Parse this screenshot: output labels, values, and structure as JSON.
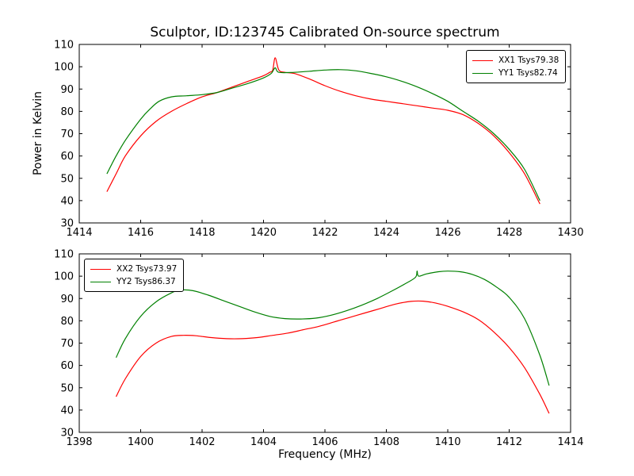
{
  "chart_data": [
    {
      "type": "line",
      "title": "Sculptor, ID:123745 Calibrated On-source spectrum",
      "xlabel": "",
      "ylabel": "Power in Kelvin",
      "xlim": [
        1414,
        1430
      ],
      "ylim": [
        30,
        110
      ],
      "xticks": [
        1414,
        1416,
        1418,
        1420,
        1422,
        1424,
        1426,
        1428,
        1430
      ],
      "yticks": [
        30,
        40,
        50,
        60,
        70,
        80,
        90,
        100,
        110
      ],
      "grid": false,
      "legend_position": "upper right",
      "series": [
        {
          "name": "XX1 Tsys79.38",
          "color": "#ff0000",
          "x": [
            1414.9,
            1415.2,
            1415.5,
            1416.0,
            1416.5,
            1417.0,
            1417.5,
            1418.0,
            1418.5,
            1419.0,
            1419.5,
            1420.0,
            1420.2,
            1420.3,
            1420.38,
            1420.5,
            1420.7,
            1421.0,
            1421.5,
            1422.0,
            1422.5,
            1423.0,
            1423.5,
            1424.0,
            1424.5,
            1425.0,
            1425.5,
            1426.0,
            1426.5,
            1427.0,
            1427.5,
            1428.0,
            1428.5,
            1429.0
          ],
          "y": [
            44,
            52,
            60,
            69,
            75.5,
            80,
            83.5,
            86.5,
            88.5,
            91,
            93.5,
            96,
            97.5,
            98.5,
            104,
            98.5,
            97.5,
            97,
            94.5,
            91.5,
            89,
            87,
            85.5,
            84.5,
            83.5,
            82.5,
            81.5,
            80.5,
            78.5,
            74.5,
            69,
            61.5,
            52,
            38.5
          ]
        },
        {
          "name": "YY1 Tsys82.74",
          "color": "#008000",
          "x": [
            1414.9,
            1415.2,
            1415.5,
            1416.0,
            1416.3,
            1416.6,
            1417.0,
            1417.5,
            1418.0,
            1418.5,
            1419.0,
            1419.5,
            1420.0,
            1420.25,
            1420.38,
            1420.5,
            1421.0,
            1421.5,
            1422.0,
            1422.5,
            1423.0,
            1423.5,
            1424.0,
            1424.5,
            1425.0,
            1425.5,
            1426.0,
            1426.5,
            1427.0,
            1427.5,
            1428.0,
            1428.5,
            1429.0
          ],
          "y": [
            52,
            60,
            67,
            76.5,
            81,
            84.5,
            86.5,
            87,
            87.5,
            88.5,
            90.5,
            92.5,
            95,
            97,
            99.5,
            97.5,
            97.5,
            98,
            98.5,
            98.7,
            98.2,
            97,
            95.5,
            93.5,
            91,
            88,
            84.5,
            80,
            75.5,
            70,
            63,
            54,
            40
          ]
        }
      ]
    },
    {
      "type": "line",
      "title": "",
      "xlabel": "Frequency (MHz)",
      "ylabel": "",
      "xlim": [
        1398,
        1414
      ],
      "ylim": [
        30,
        110
      ],
      "xticks": [
        1398,
        1400,
        1402,
        1404,
        1406,
        1408,
        1410,
        1412,
        1414
      ],
      "yticks": [
        30,
        40,
        50,
        60,
        70,
        80,
        90,
        100,
        110
      ],
      "grid": false,
      "legend_position": "upper left",
      "series": [
        {
          "name": "XX2 Tsys73.97",
          "color": "#ff0000",
          "x": [
            1399.2,
            1399.5,
            1400.0,
            1400.5,
            1401.0,
            1401.4,
            1401.8,
            1402.3,
            1402.8,
            1403.3,
            1403.8,
            1404.3,
            1404.8,
            1405.3,
            1405.8,
            1406.3,
            1406.8,
            1407.3,
            1407.8,
            1408.3,
            1408.8,
            1409.2,
            1409.6,
            1410.0,
            1410.5,
            1411.0,
            1411.5,
            1412.0,
            1412.5,
            1413.0,
            1413.3
          ],
          "y": [
            46,
            54,
            64,
            70,
            73,
            73.5,
            73.3,
            72.5,
            72,
            72,
            72.5,
            73.5,
            74.5,
            76,
            77.5,
            79.5,
            81.5,
            83.5,
            85.5,
            87.5,
            88.7,
            88.8,
            88,
            86.5,
            84,
            80.5,
            75,
            68,
            59,
            47,
            38.5
          ]
        },
        {
          "name": "YY2 Tsys86.37",
          "color": "#008000",
          "x": [
            1399.2,
            1399.5,
            1400.0,
            1400.5,
            1401.0,
            1401.3,
            1401.7,
            1402.2,
            1402.7,
            1403.2,
            1403.7,
            1404.2,
            1404.7,
            1405.2,
            1405.7,
            1406.2,
            1406.7,
            1407.2,
            1407.7,
            1408.2,
            1408.6,
            1408.95,
            1409.0,
            1409.05,
            1409.3,
            1409.7,
            1410.0,
            1410.4,
            1410.8,
            1411.2,
            1411.6,
            1412.0,
            1412.5,
            1413.0,
            1413.3
          ],
          "y": [
            63.5,
            72,
            82,
            88.5,
            92.5,
            93.8,
            93.5,
            91.5,
            89,
            86.5,
            84,
            82,
            81,
            80.8,
            81.2,
            82.5,
            84.5,
            87,
            90,
            93.5,
            96.5,
            99.5,
            102.3,
            100,
            101,
            102,
            102.3,
            102,
            100.8,
            98.5,
            95,
            90.5,
            81,
            64.5,
            51
          ]
        }
      ]
    }
  ]
}
